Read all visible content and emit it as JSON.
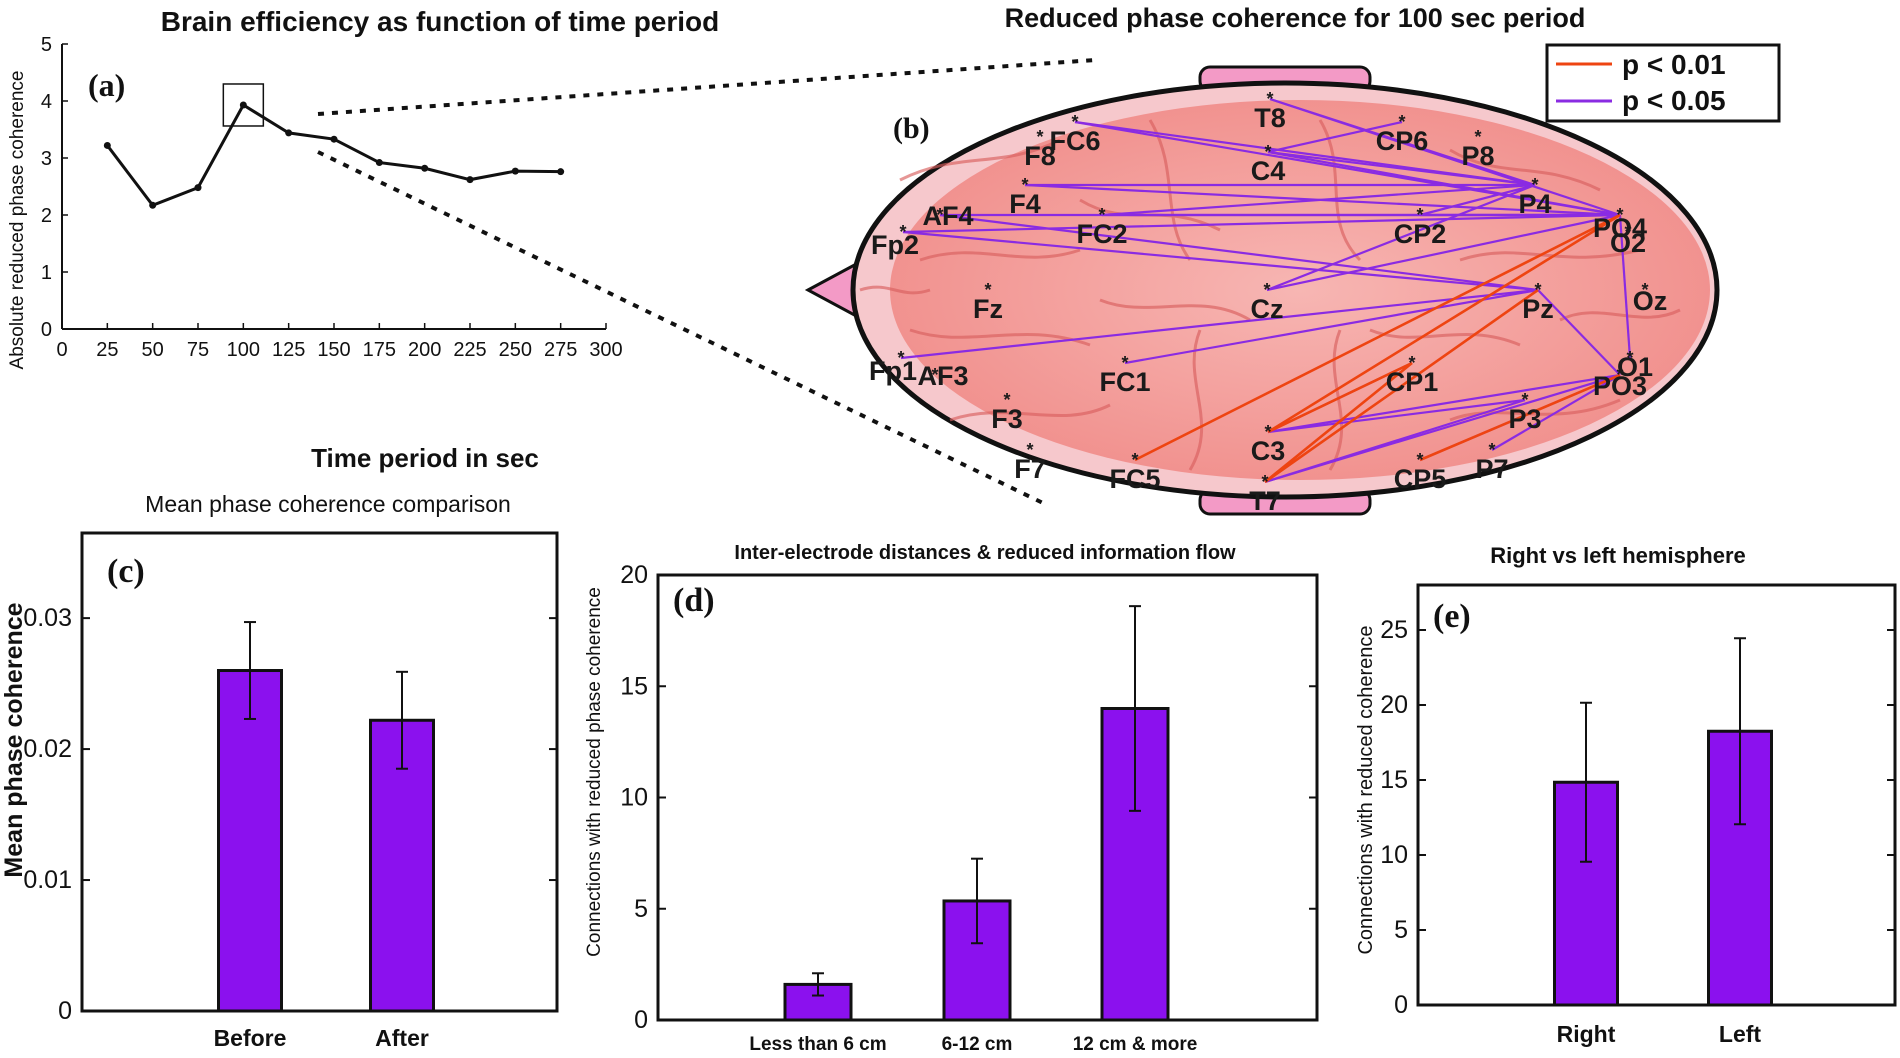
{
  "chart_data": [
    {
      "panel": "(a)",
      "type": "line",
      "title": "Brain efficiency as function of time  period",
      "xlabel": "Time period in sec",
      "ylabel": "Absolute reduced phase coherence",
      "xlim": [
        0,
        300
      ],
      "ylim": [
        0,
        5
      ],
      "xticks": [
        "0",
        "25",
        "50",
        "75",
        "100",
        "125",
        "150",
        "175",
        "200",
        "225",
        "250",
        "275",
        "300"
      ],
      "yticks": [
        "0",
        "1",
        "2",
        "3",
        "4",
        "5"
      ],
      "x": [
        25,
        50,
        75,
        100,
        125,
        150,
        175,
        200,
        225,
        250,
        275
      ],
      "y": [
        3.22,
        2.17,
        2.48,
        3.93,
        3.44,
        3.33,
        2.92,
        2.82,
        2.62,
        2.77,
        2.76
      ],
      "highlight_x": 100
    },
    {
      "panel": "(b)",
      "type": "diagram",
      "title": "Reduced phase coherence for 100 sec period",
      "legend": [
        {
          "label": "p < 0.01",
          "color": "#ee4411"
        },
        {
          "label": "p < 0.05",
          "color": "#8a2be2"
        }
      ],
      "electrodes": [
        "T8",
        "FC6",
        "F8",
        "C4",
        "CP6",
        "P8",
        "F4",
        "P4",
        "AF4",
        "PO4",
        "Fp2",
        "FC2",
        "CP2",
        "O2",
        "Fz",
        "Cz",
        "Pz",
        "Oz",
        "Fp1",
        "O1",
        "AF3",
        "FC1",
        "CP1",
        "PO3",
        "F3",
        "P3",
        "C3",
        "F7",
        "FC5",
        "CP5",
        "P7",
        "T7"
      ]
    },
    {
      "panel": "(c)",
      "type": "bar",
      "title": "Mean phase coherence comparison",
      "xlabel": "",
      "ylabel": "Mean phase coherence",
      "categories": [
        "Before",
        "After"
      ],
      "values": [
        0.026,
        0.0222
      ],
      "errors": [
        0.0037,
        0.0037
      ],
      "ylim": [
        0,
        0.0365
      ],
      "yticks": [
        "0",
        "0.01",
        "0.02",
        "0.03"
      ],
      "color": "#8b11ee"
    },
    {
      "panel": "(d)",
      "type": "bar",
      "title": "Inter-electrode distances & reduced information flow",
      "xlabel": "",
      "ylabel": "Connections with reduced phase coherence",
      "categories": [
        "Less than 6 cm",
        "6-12 cm",
        "12 cm & more"
      ],
      "values": [
        1.6,
        5.35,
        14.0
      ],
      "errors": [
        0.5,
        1.9,
        4.6
      ],
      "ylim": [
        0,
        20
      ],
      "yticks": [
        "0",
        "5",
        "10",
        "15",
        "20"
      ],
      "color": "#8b11ee"
    },
    {
      "panel": "(e)",
      "type": "bar",
      "title": "Right vs left hemisphere",
      "xlabel": "",
      "ylabel": "Connections with reduced coherence",
      "categories": [
        "Right",
        "Left"
      ],
      "values": [
        14.85,
        18.25
      ],
      "errors": [
        5.3,
        6.2
      ],
      "ylim": [
        0,
        28
      ],
      "yticks": [
        "0",
        "5",
        "10",
        "15",
        "20",
        "25"
      ],
      "color": "#8b11ee"
    }
  ]
}
